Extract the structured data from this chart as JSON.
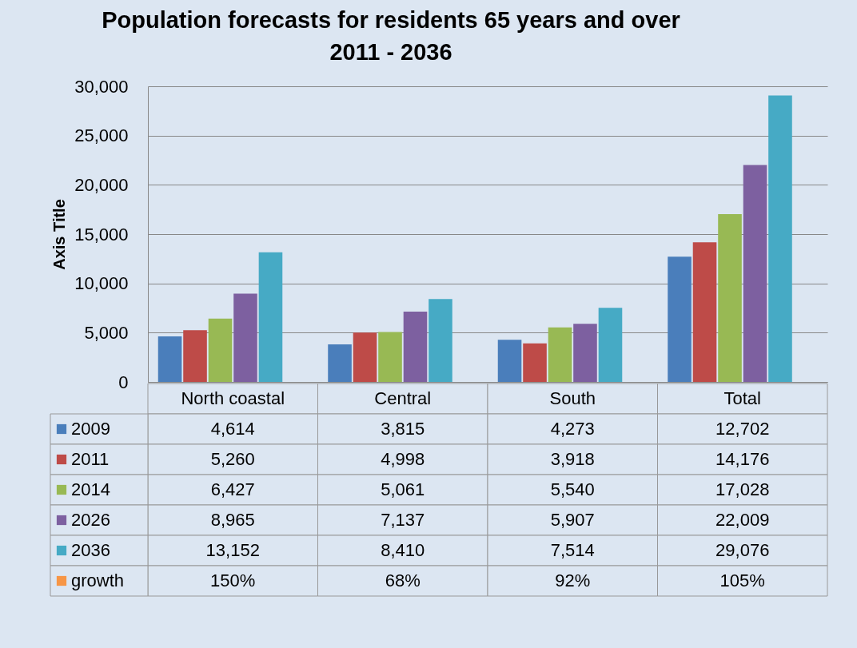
{
  "chart_data": {
    "type": "bar",
    "title": "Population  forecasts for residents 65 years and over\n2011 - 2036",
    "ylabel": "Axis Title",
    "categories": [
      "North coastal",
      "Central",
      "South",
      "Total"
    ],
    "series": [
      {
        "name": "2009",
        "color": "#4a7ebb",
        "values": [
          4614,
          3815,
          4273,
          12702
        ],
        "value_labels": [
          "4,614",
          "3,815",
          "4,273",
          "12,702"
        ]
      },
      {
        "name": "2011",
        "color": "#be4b48",
        "values": [
          5260,
          4998,
          3918,
          14176
        ],
        "value_labels": [
          "5,260",
          "4,998",
          "3,918",
          "14,176"
        ]
      },
      {
        "name": "2014",
        "color": "#98b954",
        "values": [
          6427,
          5061,
          5540,
          17028
        ],
        "value_labels": [
          "6,427",
          "5,061",
          "5,540",
          "17,028"
        ]
      },
      {
        "name": "2026",
        "color": "#7d60a0",
        "values": [
          8965,
          7137,
          5907,
          22009
        ],
        "value_labels": [
          "8,965",
          "7,137",
          "5,907",
          "22,009"
        ]
      },
      {
        "name": "2036",
        "color": "#46aac5",
        "values": [
          13152,
          8410,
          7514,
          29076
        ],
        "value_labels": [
          "13,152",
          "8,410",
          "7,514",
          "29,076"
        ]
      },
      {
        "name": "growth",
        "color": "#f79646",
        "values": [
          1.5,
          0.68,
          0.92,
          1.05
        ],
        "value_labels": [
          "150%",
          "68%",
          "92%",
          "105%"
        ]
      }
    ],
    "ylim": [
      0,
      30000
    ],
    "yticks": [
      0,
      {
        "value": 5000,
        "label": "5,000"
      },
      {
        "value": 10000,
        "label": "10,000"
      },
      {
        "value": 15000,
        "label": "15,000"
      },
      {
        "value": 20000,
        "label": "20,000"
      },
      {
        "value": 25000,
        "label": "25,000"
      },
      {
        "value": 30000,
        "label": "30,000"
      }
    ],
    "grid": "y",
    "legend": "bottom"
  }
}
